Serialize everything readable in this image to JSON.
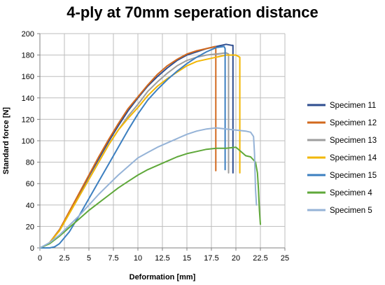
{
  "chart_data": {
    "type": "line",
    "title": "4-ply at 70mm seperation distance",
    "xlabel": "Deformation [mm]",
    "ylabel": "Standard force [N]",
    "xlim": [
      0,
      25
    ],
    "ylim": [
      0,
      200
    ],
    "xticks": [
      0,
      2.5,
      5,
      7.5,
      10,
      12.5,
      15,
      17.5,
      20,
      22.5,
      25
    ],
    "xtick_labels": [
      "0",
      "2.5",
      "5",
      "7.5",
      "10",
      "12.5",
      "15",
      "17.5",
      "20",
      "22.5",
      "25"
    ],
    "yticks": [
      0,
      20,
      40,
      60,
      80,
      100,
      120,
      140,
      160,
      180,
      200
    ],
    "ytick_labels": [
      "0",
      "20",
      "40",
      "60",
      "80",
      "100",
      "120",
      "140",
      "160",
      "180",
      "200"
    ],
    "grid": true,
    "legend_position": "right",
    "series": [
      {
        "name": "Specimen 11",
        "color": "#2E4D8F",
        "x": [
          0,
          0.5,
          1,
          2,
          3,
          4,
          5,
          6,
          7,
          8,
          9,
          10,
          11,
          12,
          13,
          14,
          15,
          16,
          17,
          18,
          19,
          19.6,
          19.7,
          19.7
        ],
        "y": [
          0,
          2,
          5,
          17,
          33,
          50,
          67,
          83,
          99,
          114,
          128,
          140,
          151,
          160,
          168,
          175,
          180,
          183,
          186,
          188,
          190,
          189,
          189,
          70
        ]
      },
      {
        "name": "Specimen 12",
        "color": "#D2691E",
        "x": [
          0,
          0.5,
          1,
          2,
          3,
          4,
          5,
          6,
          7,
          8,
          9,
          10,
          11,
          12,
          13,
          14,
          15,
          16,
          17,
          17.9,
          17.95,
          17.95
        ],
        "y": [
          0,
          2,
          5,
          17,
          34,
          51,
          68,
          85,
          101,
          116,
          130,
          141,
          152,
          162,
          170,
          176,
          181,
          184,
          186,
          188,
          187,
          72
        ]
      },
      {
        "name": "Specimen 13",
        "color": "#9E9E9E",
        "x": [
          0,
          0.5,
          1,
          2,
          3,
          4,
          5,
          6,
          7,
          8,
          9,
          10,
          11,
          12,
          13,
          14,
          15,
          16,
          17,
          18,
          19,
          19.25,
          19.25
        ],
        "y": [
          0,
          2,
          5,
          16,
          32,
          48,
          64,
          80,
          96,
          110,
          123,
          134,
          146,
          155,
          163,
          170,
          175,
          178,
          180,
          181,
          182,
          181,
          70
        ]
      },
      {
        "name": "Specimen 14",
        "color": "#F2B705",
        "x": [
          0,
          0.5,
          1,
          2,
          3,
          4,
          5,
          6,
          7,
          8,
          9,
          10,
          11,
          12,
          13,
          14,
          15,
          16,
          17,
          18,
          19,
          20,
          20.4,
          20.4
        ],
        "y": [
          0,
          2,
          5,
          16,
          32,
          48,
          64,
          80,
          96,
          110,
          121,
          131,
          142,
          151,
          158,
          164,
          170,
          174,
          176,
          178,
          180,
          180,
          178,
          70
        ]
      },
      {
        "name": "Specimen 15",
        "color": "#3C7FC0",
        "x": [
          0,
          1,
          1.5,
          2,
          3,
          4,
          5,
          6,
          7,
          8,
          9,
          10,
          11,
          12,
          13,
          14,
          15,
          16,
          17,
          18,
          18.8,
          18.9,
          18.9
        ],
        "y": [
          0,
          0,
          1,
          4,
          15,
          30,
          46,
          62,
          78,
          94,
          110,
          125,
          138,
          148,
          157,
          165,
          172,
          178,
          183,
          187,
          188,
          186,
          73
        ]
      },
      {
        "name": "Specimen 4",
        "color": "#5FA83A",
        "x": [
          0,
          1,
          2,
          3,
          4,
          5,
          6,
          7,
          8,
          9,
          10,
          11,
          12,
          13,
          14,
          15,
          16,
          17,
          18,
          19,
          20,
          20.5,
          21,
          21.5,
          22,
          22.2,
          22.3,
          22.4,
          22.5
        ],
        "y": [
          0,
          4,
          11,
          19,
          27,
          35,
          42,
          49,
          56,
          62,
          68,
          73,
          77,
          81,
          85,
          88,
          90,
          92,
          93,
          93,
          94,
          90,
          86,
          85,
          80,
          70,
          55,
          35,
          22
        ]
      },
      {
        "name": "Specimen 5",
        "color": "#95B3D7",
        "x": [
          0,
          1,
          2,
          3,
          4,
          5,
          6,
          7,
          8,
          9,
          10,
          11,
          12,
          13,
          14,
          15,
          16,
          17,
          18,
          19,
          20,
          21,
          21.5,
          21.8,
          21.9,
          22.0,
          22.1
        ],
        "y": [
          0,
          5,
          12,
          21,
          30,
          40,
          50,
          59,
          68,
          76,
          84,
          89,
          94,
          98,
          102,
          106,
          109,
          111,
          112,
          111,
          110,
          109,
          108,
          104,
          88,
          55,
          40
        ]
      }
    ]
  }
}
